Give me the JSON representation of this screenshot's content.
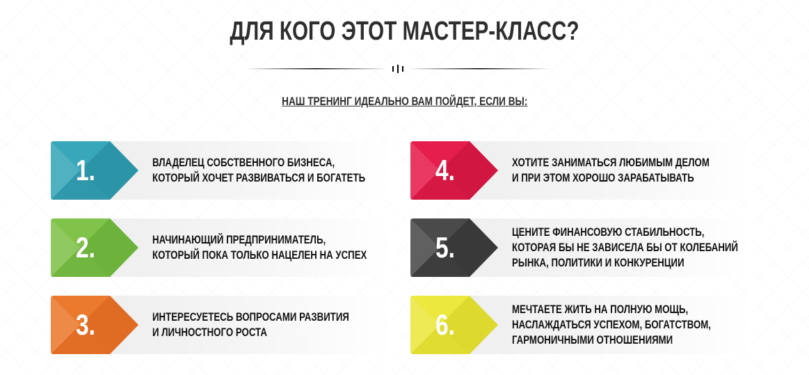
{
  "header": {
    "title": "ДЛЯ КОГО ЭТОТ МАСТЕР-КЛАСС?",
    "subtitle": "НАШ ТРЕНИНГ ИДЕАЛЬНО ВАМ ПОЙДЕТ, ЕСЛИ ВЫ:"
  },
  "items": [
    {
      "number": "1.",
      "color": "#38a7b9",
      "dark": "#1f7f93",
      "lines": [
        "ВЛАДЕЛЕЦ СОБСТВЕННОГО БИЗНЕСА,",
        "КОТОРЫЙ ХОЧЕТ РАЗВИВАТЬСЯ И БОГАТЕТЬ"
      ]
    },
    {
      "number": "2.",
      "color": "#80c24a",
      "dark": "#55a02a",
      "lines": [
        "НАЧИНАЮЩИЙ ПРЕДПРИНИМАТЕЛЬ,",
        "КОТОРЫЙ ПОКА ТОЛЬКО НАЦЕЛЕН НА УСПЕХ"
      ]
    },
    {
      "number": "3.",
      "color": "#ec7a2e",
      "dark": "#d25816",
      "lines": [
        "ИНТЕРЕСУЕТЕСЬ ВОПРОСАМИ РАЗВИТИЯ",
        "И ЛИЧНОСТНОГО РОСТА"
      ]
    },
    {
      "number": "4.",
      "color": "#e61e4e",
      "dark": "#b80d35",
      "lines": [
        "ХОТИТЕ ЗАНИМАТЬСЯ ЛЮБИМЫМ ДЕЛОМ",
        "И ПРИ ЭТОМ ХОРОШО ЗАРАБАТЫВАТЬ"
      ]
    },
    {
      "number": "5.",
      "color": "#4a4a4a",
      "dark": "#262626",
      "lines": [
        "ЦЕНИТЕ ФИНАНСОВУЮ СТАБИЛЬНОСТЬ,",
        "КОТОРАЯ БЫ НЕ ЗАВИСЕЛА БЫ ОТ КОЛЕБАНИЙ",
        "РЫНКА, ПОЛИТИКИ И КОНКУРЕНЦИИ"
      ]
    },
    {
      "number": "6.",
      "color": "#ece83e",
      "dark": "#cfc71c",
      "lines": [
        "МЕЧТАЕТЕ ЖИТЬ НА ПОЛНУЮ МОЩЬ,",
        "НАСЛАЖДАТЬСЯ УСПЕХОМ, БОГАТСТВОМ,",
        "ГАРМОНИЧНЫМИ ОТНОШЕНИЯМИ"
      ]
    }
  ]
}
